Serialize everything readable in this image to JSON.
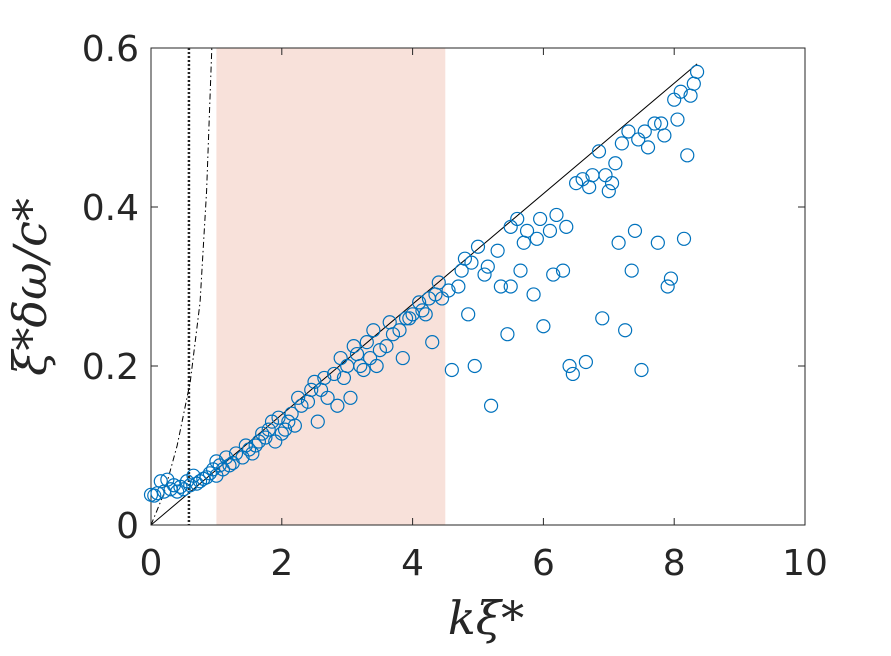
{
  "chart_data": {
    "type": "scatter",
    "x_label": "kξ*",
    "y_label": "ξ*δω/c*",
    "xlim": [
      0,
      10
    ],
    "ylim": [
      0,
      0.6
    ],
    "xticks": [
      0,
      2,
      4,
      6,
      8,
      10
    ],
    "yticks": [
      0,
      0.2,
      0.4,
      0.6
    ],
    "color": "#0072bd",
    "shade": [
      1,
      4.5
    ],
    "shade_color": "#f8e1da",
    "vline": 0.58,
    "lines": [
      {
        "style": "solid",
        "x": [
          0,
          8.35
        ],
        "y": [
          0,
          0.58
        ]
      },
      {
        "style": "dashdot",
        "x": [
          0,
          0.2,
          0.4,
          0.6,
          0.75,
          0.85,
          0.93
        ],
        "y": [
          0,
          0.04,
          0.1,
          0.18,
          0.28,
          0.42,
          0.6
        ]
      }
    ],
    "x": [
      0.0,
      0.05,
      0.1,
      0.15,
      0.2,
      0.25,
      0.3,
      0.35,
      0.4,
      0.45,
      0.5,
      0.55,
      0.6,
      0.65,
      0.7,
      0.75,
      0.8,
      0.85,
      0.9,
      0.95,
      1.0,
      1.0,
      1.05,
      1.1,
      1.15,
      1.2,
      1.25,
      1.3,
      1.4,
      1.45,
      1.5,
      1.55,
      1.6,
      1.65,
      1.7,
      1.75,
      1.8,
      1.85,
      1.9,
      1.95,
      2.0,
      2.05,
      2.1,
      2.15,
      2.2,
      2.25,
      2.3,
      2.4,
      2.45,
      2.5,
      2.55,
      2.6,
      2.65,
      2.7,
      2.8,
      2.85,
      2.9,
      2.95,
      3.0,
      3.05,
      3.1,
      3.15,
      3.2,
      3.25,
      3.3,
      3.35,
      3.4,
      3.45,
      3.5,
      3.6,
      3.65,
      3.7,
      3.8,
      3.85,
      3.9,
      3.95,
      4.0,
      4.1,
      4.15,
      4.2,
      4.25,
      4.3,
      4.35,
      4.4,
      4.45,
      4.55,
      4.6,
      4.7,
      4.75,
      4.8,
      4.85,
      4.9,
      4.95,
      5.0,
      5.1,
      5.15,
      5.2,
      5.3,
      5.35,
      5.45,
      5.5,
      5.5,
      5.6,
      5.65,
      5.7,
      5.75,
      5.85,
      5.9,
      5.95,
      6.0,
      6.1,
      6.15,
      6.2,
      6.3,
      6.35,
      6.4,
      6.45,
      6.5,
      6.6,
      6.65,
      6.7,
      6.75,
      6.85,
      6.9,
      6.95,
      7.0,
      7.05,
      7.1,
      7.15,
      7.2,
      7.25,
      7.3,
      7.35,
      7.4,
      7.45,
      7.5,
      7.55,
      7.6,
      7.7,
      7.75,
      7.8,
      7.85,
      7.9,
      7.95,
      8.0,
      8.05,
      8.1,
      8.15,
      8.2,
      8.25,
      8.3,
      8.35
    ],
    "values": [
      0.038,
      0.037,
      0.04,
      0.055,
      0.042,
      0.057,
      0.045,
      0.05,
      0.042,
      0.048,
      0.045,
      0.055,
      0.05,
      0.062,
      0.052,
      0.055,
      0.058,
      0.06,
      0.065,
      0.07,
      0.062,
      0.08,
      0.075,
      0.07,
      0.085,
      0.075,
      0.078,
      0.09,
      0.085,
      0.1,
      0.095,
      0.09,
      0.1,
      0.105,
      0.115,
      0.11,
      0.12,
      0.13,
      0.105,
      0.135,
      0.115,
      0.12,
      0.13,
      0.14,
      0.125,
      0.16,
      0.15,
      0.155,
      0.17,
      0.18,
      0.13,
      0.17,
      0.185,
      0.16,
      0.19,
      0.15,
      0.21,
      0.185,
      0.2,
      0.16,
      0.225,
      0.215,
      0.2,
      0.195,
      0.23,
      0.21,
      0.245,
      0.2,
      0.22,
      0.225,
      0.255,
      0.24,
      0.245,
      0.21,
      0.26,
      0.26,
      0.265,
      0.28,
      0.27,
      0.265,
      0.285,
      0.23,
      0.29,
      0.305,
      0.285,
      0.295,
      0.195,
      0.3,
      0.32,
      0.335,
      0.265,
      0.33,
      0.2,
      0.35,
      0.315,
      0.325,
      0.15,
      0.345,
      0.3,
      0.24,
      0.375,
      0.3,
      0.385,
      0.32,
      0.355,
      0.37,
      0.29,
      0.36,
      0.385,
      0.25,
      0.37,
      0.315,
      0.39,
      0.32,
      0.375,
      0.2,
      0.19,
      0.43,
      0.435,
      0.205,
      0.425,
      0.44,
      0.47,
      0.26,
      0.44,
      0.42,
      0.43,
      0.455,
      0.355,
      0.48,
      0.245,
      0.495,
      0.32,
      0.37,
      0.485,
      0.195,
      0.495,
      0.475,
      0.505,
      0.355,
      0.505,
      0.49,
      0.3,
      0.31,
      0.535,
      0.51,
      0.545,
      0.36,
      0.465,
      0.54,
      0.555,
      0.57
    ]
  }
}
